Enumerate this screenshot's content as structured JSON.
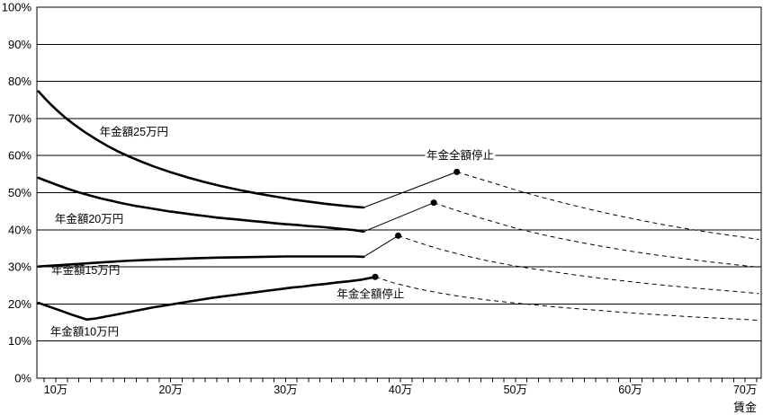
{
  "chart_data": {
    "type": "line",
    "title": "",
    "xlabel": "賃金",
    "ylabel": "",
    "x_unit": "万円",
    "xlim": [
      8.35,
      71.4
    ],
    "ylim": [
      0,
      100
    ],
    "grid": "horizontal",
    "line_color": "#000000",
    "background_color": "#ffffff",
    "y_ticks": [
      {
        "value": 100,
        "label": "100%"
      },
      {
        "value": 90,
        "label": "90%"
      },
      {
        "value": 80,
        "label": "80%"
      },
      {
        "value": 70,
        "label": "70%"
      },
      {
        "value": 60,
        "label": "60%"
      },
      {
        "value": 50,
        "label": "50%"
      },
      {
        "value": 40,
        "label": "40%"
      },
      {
        "value": 30,
        "label": "30%"
      },
      {
        "value": 20,
        "label": "20%"
      },
      {
        "value": 10,
        "label": "10%"
      },
      {
        "value": 0,
        "label": "0%"
      }
    ],
    "x_major_ticks": [
      {
        "value": 10,
        "label": "10万"
      },
      {
        "value": 20,
        "label": "20万"
      },
      {
        "value": 30,
        "label": "30万"
      },
      {
        "value": 40,
        "label": "40万"
      },
      {
        "value": 50,
        "label": "50万"
      },
      {
        "value": 60,
        "label": "60万"
      },
      {
        "value": 70,
        "label": "70万"
      }
    ],
    "x_minor_tick_range": [
      9,
      71
    ],
    "x_minor_tick_step": 1,
    "series": [
      {
        "id": "pension-25",
        "name": "年金額25万円",
        "label": {
          "text": "年金額25万円",
          "x": 16.8,
          "y": 66.5
        },
        "suspension_point": {
          "x": 44.9,
          "y": 55.6
        },
        "segments": [
          {
            "style": "thick",
            "points": [
              [
                8.5,
                77.3
              ],
              [
                9,
                75.6
              ],
              [
                9.5,
                74
              ],
              [
                10,
                72.5
              ],
              [
                10.8,
                70.3
              ],
              [
                11.5,
                68.6
              ],
              [
                12.5,
                66.4
              ],
              [
                13.5,
                64.4
              ],
              [
                14.5,
                62.6
              ],
              [
                15.5,
                61
              ],
              [
                16.5,
                59.6
              ],
              [
                17.5,
                58.3
              ],
              [
                18.5,
                57.1
              ],
              [
                20,
                55.5
              ],
              [
                21.5,
                54.1
              ],
              [
                23,
                52.8
              ],
              [
                24.5,
                51.7
              ],
              [
                26,
                50.7
              ],
              [
                27.5,
                49.8
              ],
              [
                29,
                49
              ],
              [
                30.5,
                48.2
              ],
              [
                32,
                47.6
              ],
              [
                33.5,
                47
              ],
              [
                35,
                46.5
              ],
              [
                36,
                46.2
              ],
              [
                36.8,
                46
              ]
            ]
          },
          {
            "style": "thin",
            "points": [
              [
                36.8,
                46
              ],
              [
                44.9,
                55.6
              ]
            ]
          },
          {
            "style": "dashed",
            "points": [
              [
                44.9,
                55.6
              ],
              [
                46.5,
                54.1
              ],
              [
                48.5,
                52.2
              ],
              [
                50.5,
                50.3
              ],
              [
                52.5,
                48.6
              ],
              [
                54.5,
                47
              ],
              [
                56.5,
                45.5
              ],
              [
                58.5,
                44.1
              ],
              [
                60.5,
                42.8
              ],
              [
                62.5,
                41.6
              ],
              [
                64.5,
                40.5
              ],
              [
                66.5,
                39.5
              ],
              [
                68.5,
                38.6
              ],
              [
                71.2,
                37.4
              ]
            ]
          }
        ]
      },
      {
        "id": "pension-20",
        "name": "年金額20万円",
        "label": {
          "text": "年金額20万円",
          "x": 12.9,
          "y": 43
        },
        "suspension_point": {
          "x": 42.9,
          "y": 47.3
        },
        "segments": [
          {
            "style": "thick",
            "points": [
              [
                8.5,
                54
              ],
              [
                9,
                53.4
              ],
              [
                10,
                52.2
              ],
              [
                11,
                51.1
              ],
              [
                12,
                50.1
              ],
              [
                13,
                49.2
              ],
              [
                14,
                48.4
              ],
              [
                15,
                47.7
              ],
              [
                16,
                47
              ],
              [
                17,
                46.4
              ],
              [
                18,
                45.9
              ],
              [
                19,
                45.4
              ],
              [
                20,
                44.9
              ],
              [
                21,
                44.5
              ],
              [
                22,
                44.1
              ],
              [
                23,
                43.7
              ],
              [
                24,
                43.3
              ],
              [
                25,
                43
              ],
              [
                26,
                42.7
              ],
              [
                27,
                42.4
              ],
              [
                28,
                42.1
              ],
              [
                29,
                41.8
              ],
              [
                30,
                41.5
              ],
              [
                31,
                41.3
              ],
              [
                32,
                41
              ],
              [
                33,
                40.8
              ],
              [
                34,
                40.5
              ],
              [
                35,
                40.2
              ],
              [
                36,
                39.9
              ],
              [
                36.8,
                39.5
              ]
            ]
          },
          {
            "style": "thin",
            "points": [
              [
                36.8,
                39.5
              ],
              [
                42.9,
                47.3
              ]
            ]
          },
          {
            "style": "dashed",
            "points": [
              [
                42.9,
                47.3
              ],
              [
                44.5,
                45.6
              ],
              [
                46.5,
                43.6
              ],
              [
                48.5,
                41.8
              ],
              [
                50.3,
                40.2
              ],
              [
                52.5,
                38.6
              ],
              [
                54.5,
                37.3
              ],
              [
                56.5,
                36.1
              ],
              [
                58.5,
                35
              ],
              [
                60.5,
                34
              ],
              [
                62.5,
                33.1
              ],
              [
                64.5,
                32.3
              ],
              [
                66.5,
                31.5
              ],
              [
                68.5,
                30.8
              ],
              [
                71.2,
                29.9
              ]
            ]
          }
        ]
      },
      {
        "id": "pension-15",
        "name": "年金額15万円",
        "label": {
          "text": "年金額15万円",
          "x": 12.6,
          "y": 29.2
        },
        "suspension_point": {
          "x": 39.8,
          "y": 38.4
        },
        "segments": [
          {
            "style": "thick",
            "points": [
              [
                8.5,
                30.1
              ],
              [
                10,
                30.4
              ],
              [
                12,
                30.8
              ],
              [
                14,
                31.2
              ],
              [
                16,
                31.6
              ],
              [
                18,
                31.9
              ],
              [
                20,
                32.1
              ],
              [
                22,
                32.3
              ],
              [
                24,
                32.5
              ],
              [
                26,
                32.6
              ],
              [
                28,
                32.7
              ],
              [
                30,
                32.8
              ],
              [
                33,
                32.8
              ],
              [
                36,
                32.8
              ],
              [
                36.8,
                32.7
              ]
            ]
          },
          {
            "style": "thin",
            "points": [
              [
                36.8,
                32.7
              ],
              [
                39.8,
                38.4
              ]
            ]
          },
          {
            "style": "dashed",
            "points": [
              [
                39.8,
                38.4
              ],
              [
                41.5,
                36.6
              ],
              [
                43.5,
                34.7
              ],
              [
                45.5,
                33.1
              ],
              [
                47.5,
                31.7
              ],
              [
                49.5,
                30.5
              ],
              [
                51.5,
                29.5
              ],
              [
                53.5,
                28.6
              ],
              [
                55.5,
                27.7
              ],
              [
                57.5,
                26.9
              ],
              [
                59.5,
                26.2
              ],
              [
                61.5,
                25.5
              ],
              [
                63.5,
                24.9
              ],
              [
                65.5,
                24.3
              ],
              [
                67.5,
                23.8
              ],
              [
                69.5,
                23.3
              ],
              [
                71.2,
                22.8
              ]
            ]
          }
        ]
      },
      {
        "id": "pension-10",
        "name": "年金額10万円",
        "label": {
          "text": "年金額10万円",
          "x": 12.5,
          "y": 12.6
        },
        "suspension_point": {
          "x": 37.8,
          "y": 27.3
        },
        "segments": [
          {
            "style": "thick",
            "points": [
              [
                8.5,
                20.3
              ],
              [
                9.5,
                19.2
              ],
              [
                10.5,
                18.1
              ],
              [
                11.5,
                17
              ],
              [
                12.7,
                15.8
              ],
              [
                13.5,
                16.1
              ],
              [
                14.5,
                16.7
              ],
              [
                15.5,
                17.3
              ],
              [
                16.5,
                17.9
              ],
              [
                17.5,
                18.5
              ],
              [
                18.5,
                19.1
              ],
              [
                19.5,
                19.6
              ],
              [
                20.5,
                20.1
              ],
              [
                21.5,
                20.6
              ],
              [
                22.5,
                21.1
              ],
              [
                23.5,
                21.6
              ],
              [
                24.5,
                22
              ],
              [
                25.5,
                22.4
              ],
              [
                26.5,
                22.8
              ],
              [
                27.5,
                23.2
              ],
              [
                28.5,
                23.6
              ],
              [
                29.5,
                24
              ],
              [
                30.5,
                24.4
              ],
              [
                31.5,
                24.7
              ],
              [
                32.5,
                25.1
              ],
              [
                33.5,
                25.4
              ],
              [
                34.5,
                25.8
              ],
              [
                35.5,
                26.1
              ],
              [
                36.5,
                26.5
              ],
              [
                37.8,
                27.3
              ]
            ]
          },
          {
            "style": "dashed",
            "points": [
              [
                37.8,
                27.3
              ],
              [
                39.5,
                25.6
              ],
              [
                41.5,
                24.1
              ],
              [
                43.5,
                22.9
              ],
              [
                45.5,
                21.9
              ],
              [
                47.5,
                21.1
              ],
              [
                49.5,
                20.4
              ],
              [
                51.5,
                19.8
              ],
              [
                53.5,
                19.2
              ],
              [
                55.5,
                18.7
              ],
              [
                57.5,
                18.2
              ],
              [
                59.5,
                17.7
              ],
              [
                61.5,
                17.3
              ],
              [
                63.5,
                16.9
              ],
              [
                65.5,
                16.5
              ],
              [
                67.5,
                16.2
              ],
              [
                69.5,
                15.9
              ],
              [
                71.2,
                15.6
              ]
            ]
          }
        ]
      }
    ],
    "annotations": [
      {
        "id": "full-stop-top",
        "text": "年金全額停止",
        "x": 45.2,
        "y": 60.2
      },
      {
        "id": "full-stop-bottom",
        "text": "年金全額停止",
        "x": 37.4,
        "y": 22.7
      }
    ]
  }
}
